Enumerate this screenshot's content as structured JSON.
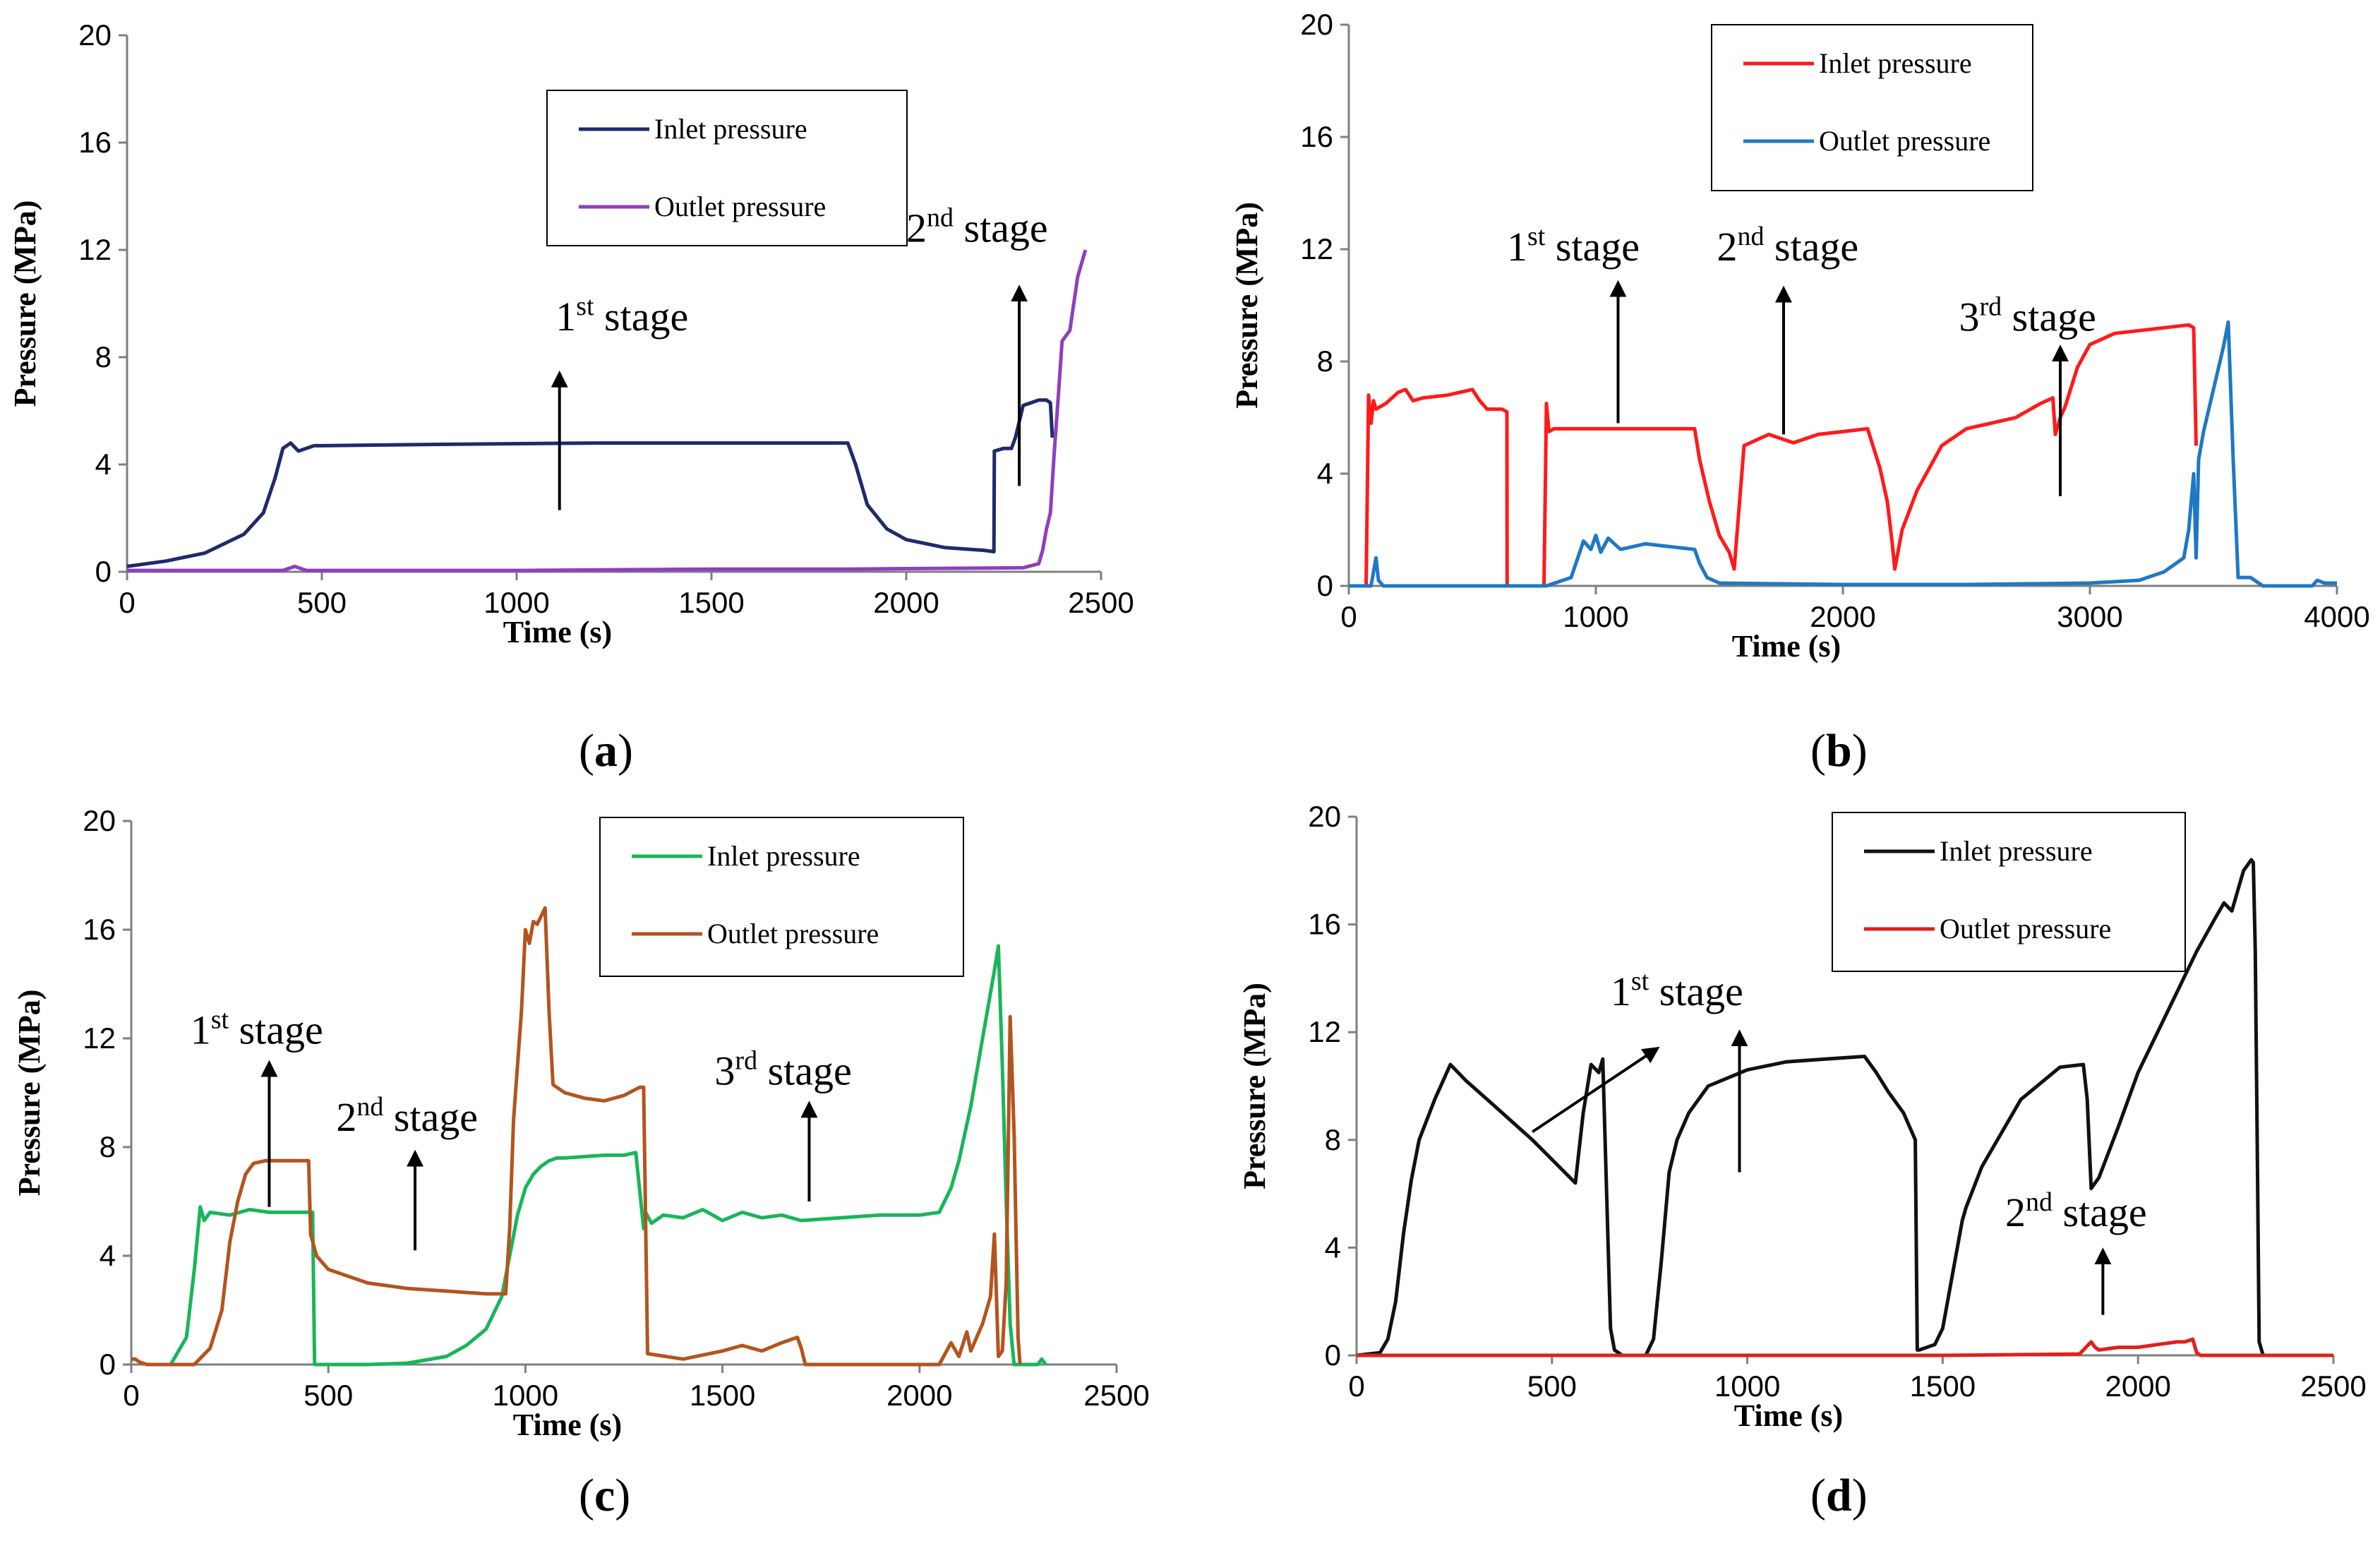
{
  "charts": [
    {
      "panel_label": "a",
      "type": "line",
      "xlabel": "Time (s)",
      "ylabel": "Pressure (MPa)",
      "xlim": [
        0,
        2500
      ],
      "ylim": [
        0,
        20
      ],
      "xticks": [
        0,
        500,
        1000,
        1500,
        2000,
        2500
      ],
      "yticks": [
        0,
        4,
        8,
        12,
        16,
        20
      ],
      "legend": {
        "position": "top-center"
      },
      "series": [
        {
          "name": "Inlet pressure",
          "color": "#1f2a6b",
          "x": [
            0,
            100,
            200,
            300,
            350,
            380,
            400,
            420,
            440,
            480,
            500,
            800,
            1200,
            1600,
            1850,
            1870,
            1900,
            1950,
            2000,
            2100,
            2200,
            2225,
            2226,
            2250,
            2270,
            2280,
            2300,
            2320,
            2340,
            2360,
            2370,
            2375
          ],
          "y": [
            0.2,
            0.4,
            0.7,
            1.4,
            2.2,
            3.5,
            4.6,
            4.8,
            4.5,
            4.7,
            4.7,
            4.75,
            4.8,
            4.8,
            4.8,
            4.0,
            2.5,
            1.6,
            1.2,
            0.9,
            0.8,
            0.75,
            4.5,
            4.6,
            4.6,
            5.0,
            6.2,
            6.3,
            6.4,
            6.4,
            6.3,
            5.0
          ]
        },
        {
          "name": "Outlet pressure",
          "color": "#8e3fc0",
          "x": [
            0,
            400,
            430,
            460,
            1000,
            1500,
            1850,
            2300,
            2340,
            2350,
            2360,
            2370,
            2380,
            2390,
            2400,
            2410,
            2420,
            2440,
            2460
          ],
          "y": [
            0.05,
            0.05,
            0.2,
            0.05,
            0.05,
            0.1,
            0.1,
            0.15,
            0.3,
            0.8,
            1.6,
            2.2,
            4.5,
            6.5,
            8.6,
            8.8,
            9.0,
            11.0,
            12.0
          ]
        }
      ],
      "annotations": [
        {
          "base": "1",
          "sup": "st",
          "rest": " stage",
          "at": [
            1100,
            9.0
          ],
          "arrow_from": [
            1110,
            2.3
          ],
          "arrow_to": [
            1110,
            7.4
          ]
        },
        {
          "base": "2",
          "sup": "nd",
          "rest": " stage",
          "at": [
            2000,
            12.3
          ],
          "arrow_from": [
            2290,
            3.2
          ],
          "arrow_to": [
            2290,
            10.6
          ]
        }
      ]
    },
    {
      "panel_label": "b",
      "type": "line",
      "xlabel": "Time (s)",
      "ylabel": "Pressure (MPa)",
      "xlim": [
        0,
        4000
      ],
      "ylim": [
        0,
        20
      ],
      "xticks": [
        0,
        1000,
        2000,
        3000,
        4000
      ],
      "yticks": [
        0,
        4,
        8,
        12,
        16,
        20
      ],
      "legend": {
        "position": "top-center"
      },
      "series": [
        {
          "name": "Inlet pressure",
          "color": "#ff1a1a",
          "x": [
            70,
            80,
            90,
            100,
            110,
            150,
            200,
            230,
            260,
            300,
            400,
            500,
            530,
            560,
            620,
            640,
            641,
            790,
            800,
            810,
            830,
            900,
            1000,
            1200,
            1400,
            1420,
            1460,
            1500,
            1540,
            1560,
            1580,
            1600,
            1700,
            1800,
            1900,
            2000,
            2100,
            2150,
            2180,
            2200,
            2210,
            2240,
            2300,
            2400,
            2500,
            2600,
            2700,
            2800,
            2850,
            2860,
            2880,
            2900,
            2950,
            3000,
            3100,
            3200,
            3300,
            3400,
            3420,
            3430
          ],
          "y": [
            0,
            6.8,
            5.8,
            6.6,
            6.3,
            6.5,
            6.9,
            7.0,
            6.6,
            6.7,
            6.8,
            7.0,
            6.6,
            6.3,
            6.3,
            6.2,
            0,
            0,
            6.5,
            5.5,
            5.6,
            5.6,
            5.6,
            5.6,
            5.6,
            4.5,
            3.0,
            1.8,
            1.2,
            0.6,
            2.8,
            5.0,
            5.4,
            5.1,
            5.4,
            5.5,
            5.6,
            4.2,
            3.0,
            1.5,
            0.6,
            2.0,
            3.4,
            5.0,
            5.6,
            5.8,
            6.0,
            6.5,
            6.7,
            5.4,
            6.0,
            6.4,
            7.8,
            8.6,
            9.0,
            9.1,
            9.2,
            9.3,
            9.2,
            5.0
          ]
        },
        {
          "name": "Outlet pressure",
          "color": "#1f78c4",
          "x": [
            0,
            90,
            110,
            120,
            140,
            800,
            900,
            950,
            980,
            1000,
            1020,
            1050,
            1100,
            1200,
            1300,
            1400,
            1420,
            1450,
            1500,
            2000,
            2500,
            3000,
            3200,
            3300,
            3380,
            3400,
            3420,
            3430,
            3440,
            3460,
            3500,
            3540,
            3560,
            3580,
            3600,
            3650,
            3700,
            3900,
            3920,
            3950,
            4000
          ],
          "y": [
            0,
            0,
            1.0,
            0.2,
            0,
            0,
            0.3,
            1.6,
            1.3,
            1.8,
            1.2,
            1.7,
            1.3,
            1.5,
            1.4,
            1.3,
            0.8,
            0.3,
            0.1,
            0.05,
            0.05,
            0.1,
            0.2,
            0.5,
            1.0,
            2.0,
            4.0,
            1.0,
            4.5,
            5.5,
            7.0,
            8.5,
            9.4,
            4.5,
            0.3,
            0.3,
            0,
            0,
            0.2,
            0.1,
            0.1
          ]
        }
      ],
      "annotations": [
        {
          "base": "1",
          "sup": "st",
          "rest": " stage",
          "at": [
            640,
            11.6
          ],
          "arrow_from": [
            1090,
            5.8
          ],
          "arrow_to": [
            1090,
            10.8
          ]
        },
        {
          "base": "2",
          "sup": "nd",
          "rest": " stage",
          "at": [
            1490,
            11.6
          ],
          "arrow_from": [
            1760,
            5.4
          ],
          "arrow_to": [
            1760,
            10.6
          ]
        },
        {
          "base": "3",
          "sup": "rd",
          "rest": " stage",
          "at": [
            2470,
            9.1
          ],
          "arrow_from": [
            2880,
            3.2
          ],
          "arrow_to": [
            2880,
            8.5
          ]
        }
      ]
    },
    {
      "panel_label": "c",
      "type": "line",
      "xlabel": "Time (s)",
      "ylabel": "Pressure (MPa)",
      "xlim": [
        0,
        2500
      ],
      "ylim": [
        0,
        20
      ],
      "xticks": [
        0,
        500,
        1000,
        1500,
        2000,
        2500
      ],
      "yticks": [
        0,
        4,
        8,
        12,
        16,
        20
      ],
      "legend": {
        "position": "top-right"
      },
      "series": [
        {
          "name": "Inlet pressure",
          "color": "#19b55a",
          "x": [
            100,
            140,
            160,
            175,
            185,
            200,
            250,
            300,
            350,
            400,
            440,
            460,
            465,
            500,
            600,
            700,
            800,
            850,
            900,
            940,
            960,
            980,
            1000,
            1020,
            1040,
            1060,
            1080,
            1100,
            1200,
            1250,
            1280,
            1300,
            1305,
            1320,
            1350,
            1400,
            1450,
            1500,
            1550,
            1600,
            1650,
            1700,
            1800,
            1900,
            2000,
            2050,
            2080,
            2100,
            2130,
            2160,
            2190,
            2200,
            2210,
            2220,
            2230,
            2240,
            2300,
            2310,
            2320
          ],
          "y": [
            0,
            1.0,
            3.5,
            5.8,
            5.3,
            5.6,
            5.5,
            5.7,
            5.6,
            5.6,
            5.6,
            5.6,
            0,
            0,
            0,
            0.05,
            0.3,
            0.7,
            1.3,
            2.5,
            4.0,
            5.5,
            6.5,
            7.0,
            7.3,
            7.5,
            7.6,
            7.6,
            7.7,
            7.7,
            7.8,
            5.0,
            5.6,
            5.2,
            5.5,
            5.4,
            5.7,
            5.3,
            5.6,
            5.4,
            5.5,
            5.3,
            5.4,
            5.5,
            5.5,
            5.6,
            6.5,
            7.5,
            9.5,
            12.0,
            14.5,
            15.4,
            11.0,
            6.0,
            1.5,
            0,
            0,
            0.2,
            0
          ]
        },
        {
          "name": "Outlet pressure",
          "color": "#b3541e",
          "x": [
            0,
            10,
            20,
            40,
            160,
            200,
            230,
            250,
            270,
            290,
            310,
            340,
            380,
            420,
            450,
            455,
            470,
            500,
            600,
            700,
            800,
            900,
            950,
            960,
            970,
            990,
            1000,
            1010,
            1020,
            1030,
            1050,
            1060,
            1070,
            1100,
            1150,
            1200,
            1250,
            1290,
            1300,
            1310,
            1400,
            1500,
            1550,
            1600,
            1650,
            1690,
            1700,
            1710,
            2050,
            2080,
            2100,
            2120,
            2130,
            2160,
            2180,
            2190,
            2200,
            2210,
            2220,
            2230,
            2240,
            2250,
            2255
          ],
          "y": [
            0.2,
            0.2,
            0.1,
            0,
            0,
            0.6,
            2.0,
            4.5,
            6.0,
            7.0,
            7.4,
            7.5,
            7.5,
            7.5,
            7.5,
            4.8,
            4.0,
            3.5,
            3.0,
            2.8,
            2.7,
            2.6,
            2.6,
            5.0,
            9.0,
            13.0,
            16.0,
            15.5,
            16.3,
            16.2,
            16.8,
            13.0,
            10.3,
            10.0,
            9.8,
            9.7,
            9.9,
            10.2,
            10.2,
            0.4,
            0.2,
            0.5,
            0.7,
            0.5,
            0.8,
            1.0,
            0.6,
            0,
            0,
            0.8,
            0.3,
            1.2,
            0.5,
            1.5,
            2.5,
            4.8,
            0.3,
            0.5,
            3.0,
            12.8,
            8.5,
            1.0,
            0
          ]
        }
      ],
      "annotations": [
        {
          "base": "1",
          "sup": "st",
          "rest": " stage",
          "at": [
            150,
            11.8
          ],
          "arrow_from": [
            350,
            5.8
          ],
          "arrow_to": [
            350,
            11.1
          ]
        },
        {
          "base": "2",
          "sup": "nd",
          "rest": " stage",
          "at": [
            520,
            8.6
          ],
          "arrow_from": [
            720,
            4.2
          ],
          "arrow_to": [
            720,
            7.8
          ]
        },
        {
          "base": "3",
          "sup": "rd",
          "rest": " stage",
          "at": [
            1480,
            10.3
          ],
          "arrow_from": [
            1720,
            6.0
          ],
          "arrow_to": [
            1720,
            9.6
          ]
        }
      ]
    },
    {
      "panel_label": "d",
      "type": "line",
      "xlabel": "Time (s)",
      "ylabel": "Pressure (MPa)",
      "xlim": [
        0,
        2500
      ],
      "ylim": [
        0,
        20
      ],
      "xticks": [
        0,
        500,
        1000,
        1500,
        2000,
        2500
      ],
      "yticks": [
        0,
        4,
        8,
        12,
        16,
        20
      ],
      "legend": {
        "position": "top-right"
      },
      "series": [
        {
          "name": "Inlet pressure",
          "color": "#111111",
          "x": [
            0,
            60,
            80,
            100,
            120,
            140,
            160,
            200,
            240,
            280,
            350,
            450,
            560,
            580,
            600,
            620,
            630,
            640,
            650,
            660,
            670,
            680,
            740,
            760,
            780,
            800,
            820,
            850,
            900,
            1000,
            1100,
            1200,
            1300,
            1330,
            1360,
            1400,
            1430,
            1435,
            1440,
            1480,
            1500,
            1550,
            1560,
            1600,
            1700,
            1800,
            1860,
            1870,
            1880,
            1900,
            1950,
            2000,
            2050,
            2100,
            2150,
            2200,
            2220,
            2240,
            2260,
            2270,
            2290,
            2295,
            2300,
            2305,
            2310,
            2320
          ],
          "y": [
            0,
            0.1,
            0.6,
            2.0,
            4.5,
            6.5,
            8.0,
            9.5,
            10.8,
            10.2,
            9.3,
            8.0,
            6.4,
            9.0,
            10.8,
            10.5,
            11.0,
            6.0,
            1.0,
            0.2,
            0.1,
            0,
            0,
            0.6,
            3.5,
            6.8,
            8.0,
            9.0,
            10.0,
            10.6,
            10.9,
            11.0,
            11.1,
            10.5,
            9.8,
            9.0,
            8.0,
            0.2,
            0.2,
            0.4,
            1.0,
            5.0,
            5.5,
            7.0,
            9.5,
            10.7,
            10.8,
            9.5,
            6.2,
            6.6,
            8.5,
            10.5,
            12.0,
            13.5,
            15.0,
            16.3,
            16.8,
            16.5,
            17.5,
            18.0,
            18.4,
            18.3,
            15.0,
            8.0,
            0.5,
            0
          ]
        },
        {
          "name": "Outlet pressure",
          "color": "#e0201b",
          "x": [
            0,
            500,
            1000,
            1500,
            1850,
            1880,
            1890,
            1900,
            1950,
            2000,
            2050,
            2100,
            2120,
            2140,
            2150,
            2160,
            2300,
            2500
          ],
          "y": [
            0,
            0,
            0,
            0,
            0.05,
            0.5,
            0.3,
            0.2,
            0.3,
            0.3,
            0.4,
            0.5,
            0.5,
            0.6,
            0.1,
            0,
            0,
            0
          ]
        }
      ],
      "annotations": [
        {
          "base": "1",
          "sup": "st",
          "rest": " stage",
          "at": [
            650,
            13.0
          ],
          "arrow_from": [
            450,
            8.3
          ],
          "arrow_to": [
            770,
            11.4
          ],
          "arrow2_from": [
            980,
            6.8
          ],
          "arrow2_to": [
            980,
            12.0
          ]
        },
        {
          "base": "2",
          "sup": "nd",
          "rest": " stage",
          "at": [
            1660,
            4.8
          ],
          "arrow_from": [
            1910,
            1.5
          ],
          "arrow_to": [
            1910,
            3.9
          ]
        }
      ]
    }
  ]
}
